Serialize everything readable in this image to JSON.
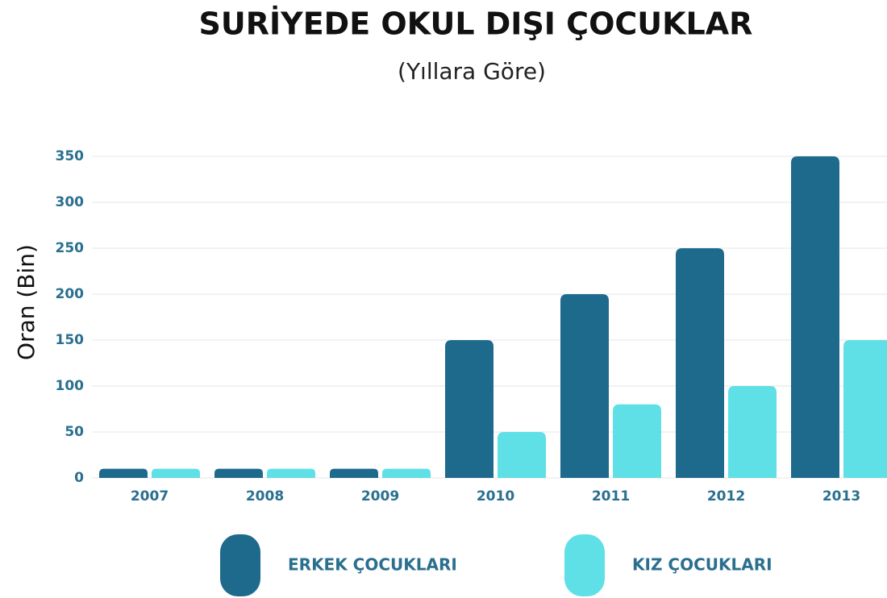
{
  "chart_data": {
    "type": "bar",
    "title": "SURİYEDE OKUL DIŞI ÇOCUKLAR",
    "subtitle": "(Yıllara Göre)",
    "y_label": "Oran (Bin)",
    "categories": [
      "2007",
      "2008",
      "2009",
      "2010",
      "2011",
      "2012",
      "2013"
    ],
    "series": [
      {
        "name": "ERKEK ÇOCUKLARI",
        "color": "#1e6a8d",
        "values": [
          10,
          10,
          10,
          150,
          200,
          250,
          350
        ]
      },
      {
        "name": "KIZ ÇOCUKLARI",
        "color": "#5ee0e6",
        "values": [
          10,
          10,
          10,
          50,
          80,
          100,
          150
        ]
      }
    ],
    "ylim": [
      0,
      350
    ],
    "yticks": [
      0,
      50,
      100,
      150,
      200,
      250,
      300,
      350
    ],
    "grid": true
  }
}
